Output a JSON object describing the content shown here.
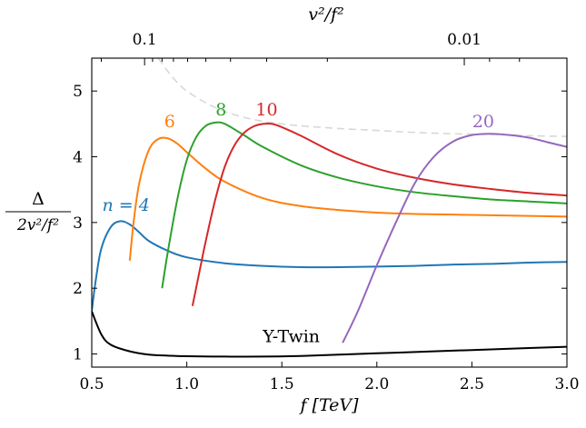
{
  "chart_data": {
    "type": "line",
    "xlabel": "f [TeV]",
    "top_xlabel": "v²/f²",
    "ylabel_numerator": "Δ",
    "ylabel_denominator": "2v²/f²",
    "xlim": [
      0.5,
      3.0
    ],
    "ylim": [
      0.8,
      5.5
    ],
    "x_ticks": [
      0.5,
      1.0,
      1.5,
      2.0,
      2.5,
      3.0
    ],
    "x_tick_labels": [
      "0.5",
      "1.0",
      "1.5",
      "2.0",
      "2.5",
      "3.0"
    ],
    "y_ticks": [
      1,
      2,
      3,
      4,
      5
    ],
    "y_tick_labels": [
      "1",
      "2",
      "3",
      "4",
      "5"
    ],
    "top_axis": {
      "v_TeV": 0.246,
      "major_ticks": [
        0.1,
        0.01
      ],
      "major_tick_labels": [
        "0.1",
        "0.01"
      ],
      "minor_ticks": [
        0.2,
        0.09,
        0.08,
        0.07,
        0.06,
        0.05,
        0.04,
        0.03,
        0.02,
        0.009,
        0.008
      ]
    },
    "grid": false,
    "legend": "none",
    "series": [
      {
        "key": "ytwin",
        "name": "Y-Twin",
        "color": "#000000",
        "style": "solid",
        "x": [
          0.5,
          0.55,
          0.6,
          0.7,
          0.8,
          0.9,
          1.0,
          1.2,
          1.4,
          1.6,
          1.8,
          2.0,
          2.2,
          2.4,
          2.6,
          2.8,
          3.0
        ],
        "y": [
          1.65,
          1.3,
          1.14,
          1.04,
          0.99,
          0.975,
          0.965,
          0.96,
          0.96,
          0.97,
          0.99,
          1.01,
          1.03,
          1.05,
          1.07,
          1.09,
          1.11
        ]
      },
      {
        "key": "n4",
        "name": "n = 4",
        "color": "#1f77b4",
        "style": "solid",
        "x": [
          0.5,
          0.52,
          0.55,
          0.6,
          0.65,
          0.7,
          0.75,
          0.8,
          0.9,
          1.0,
          1.2,
          1.4,
          1.6,
          1.8,
          2.0,
          2.2,
          2.4,
          2.6,
          2.8,
          3.0
        ],
        "y": [
          1.65,
          2.1,
          2.6,
          2.93,
          3.02,
          2.97,
          2.85,
          2.72,
          2.57,
          2.47,
          2.38,
          2.34,
          2.32,
          2.32,
          2.33,
          2.34,
          2.36,
          2.37,
          2.39,
          2.4
        ]
      },
      {
        "key": "n6",
        "name": "6",
        "color": "#ff7f0e",
        "style": "solid",
        "x": [
          0.7,
          0.72,
          0.75,
          0.8,
          0.85,
          0.9,
          0.95,
          1.0,
          1.1,
          1.2,
          1.4,
          1.6,
          1.8,
          2.0,
          2.2,
          2.4,
          2.6,
          2.8,
          3.0
        ],
        "y": [
          2.42,
          3.0,
          3.6,
          4.1,
          4.27,
          4.28,
          4.2,
          4.07,
          3.82,
          3.62,
          3.37,
          3.25,
          3.19,
          3.15,
          3.13,
          3.12,
          3.11,
          3.1,
          3.09
        ]
      },
      {
        "key": "n8",
        "name": "8",
        "color": "#2ca02c",
        "style": "solid",
        "x": [
          0.87,
          0.9,
          0.95,
          1.0,
          1.05,
          1.1,
          1.15,
          1.2,
          1.3,
          1.4,
          1.6,
          1.8,
          2.0,
          2.2,
          2.4,
          2.6,
          2.8,
          3.0
        ],
        "y": [
          2.0,
          2.55,
          3.35,
          3.95,
          4.3,
          4.47,
          4.52,
          4.5,
          4.33,
          4.15,
          3.87,
          3.68,
          3.55,
          3.46,
          3.4,
          3.35,
          3.32,
          3.29
        ]
      },
      {
        "key": "n10",
        "name": "10",
        "color": "#d62728",
        "style": "solid",
        "x": [
          1.03,
          1.07,
          1.1,
          1.15,
          1.2,
          1.25,
          1.3,
          1.35,
          1.4,
          1.45,
          1.5,
          1.6,
          1.8,
          2.0,
          2.2,
          2.4,
          2.6,
          2.8,
          3.0
        ],
        "y": [
          1.73,
          2.3,
          2.72,
          3.35,
          3.85,
          4.17,
          4.36,
          4.46,
          4.5,
          4.5,
          4.45,
          4.32,
          4.03,
          3.82,
          3.68,
          3.58,
          3.51,
          3.45,
          3.41
        ]
      },
      {
        "key": "n20",
        "name": "20",
        "color": "#9467bd",
        "style": "solid",
        "x": [
          1.82,
          1.9,
          2.0,
          2.1,
          2.2,
          2.3,
          2.4,
          2.5,
          2.6,
          2.7,
          2.8,
          2.9,
          3.0
        ],
        "y": [
          1.17,
          1.65,
          2.35,
          3.0,
          3.6,
          4.0,
          4.23,
          4.33,
          4.35,
          4.33,
          4.29,
          4.22,
          4.15
        ]
      },
      {
        "key": "bound",
        "name": "",
        "color": "#d8d8d8",
        "style": "dashed",
        "x": [
          0.85,
          0.9,
          0.95,
          1.0,
          1.1,
          1.2,
          1.3,
          1.4,
          1.5,
          1.6,
          1.8,
          2.0,
          2.2,
          2.4,
          2.6,
          2.8,
          3.0
        ],
        "y": [
          5.5,
          5.3,
          5.13,
          5.0,
          4.82,
          4.69,
          4.6,
          4.54,
          4.5,
          4.47,
          4.43,
          4.4,
          4.37,
          4.35,
          4.34,
          4.32,
          4.31
        ]
      }
    ],
    "annotations": [
      {
        "key": "ytwin",
        "text": "Y-Twin",
        "x": 1.55,
        "y": 1.18
      },
      {
        "key": "n4",
        "text": "n = 4",
        "x": 0.68,
        "y": 3.18
      },
      {
        "key": "n6",
        "text": "6",
        "x": 0.91,
        "y": 4.45
      },
      {
        "key": "n8",
        "text": "8",
        "x": 1.18,
        "y": 4.63
      },
      {
        "key": "n10",
        "text": "10",
        "x": 1.42,
        "y": 4.63
      },
      {
        "key": "n20",
        "text": "20",
        "x": 2.56,
        "y": 4.45
      }
    ]
  }
}
